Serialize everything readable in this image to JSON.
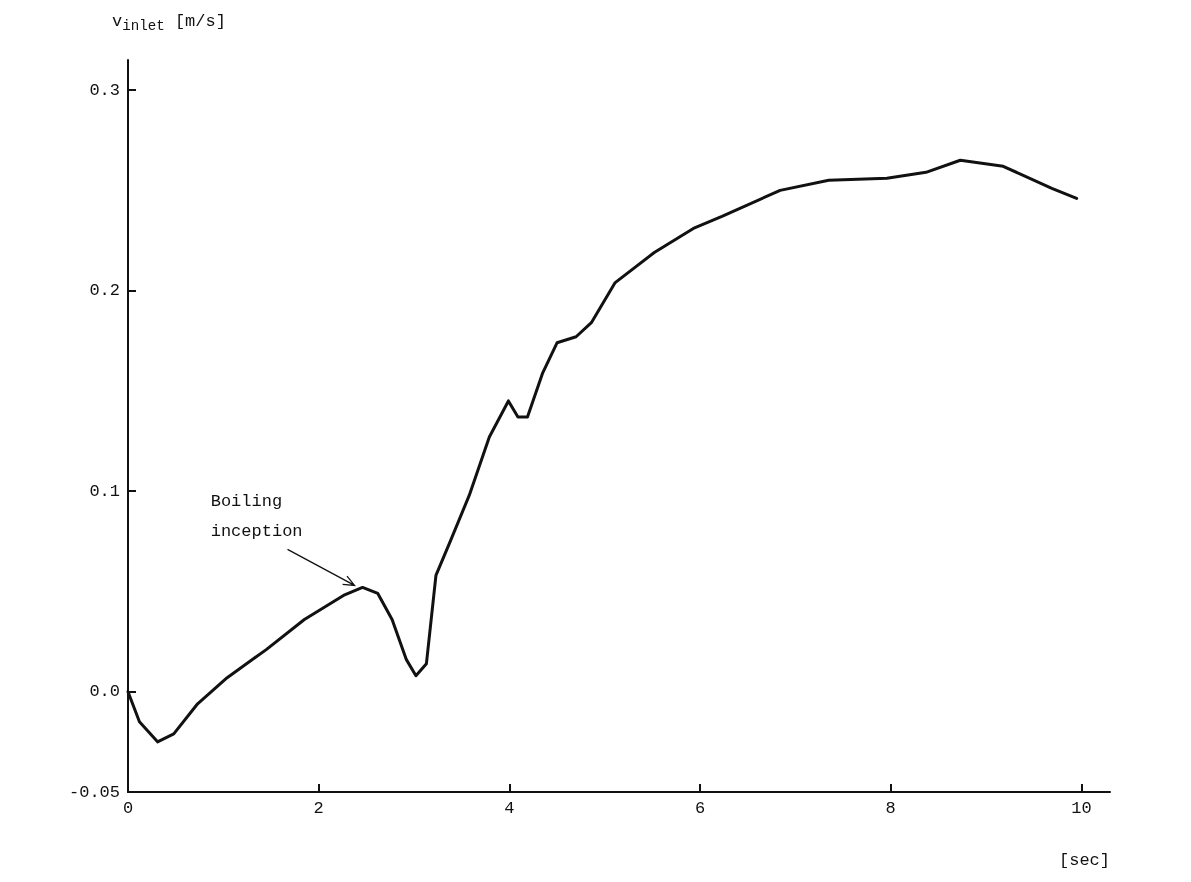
{
  "chart_data": {
    "type": "line",
    "xlabel": "[sec]",
    "ylabel": "v$_{inlet}$ [m/s]",
    "xlim": [
      0,
      10.3
    ],
    "xticks": [
      0,
      2,
      4,
      6,
      8,
      10
    ],
    "ylim": [
      -0.05,
      0.315
    ],
    "yticks": [
      -0.05,
      {
        "value": 0,
        "label": "0.0"
      },
      0.1,
      0.2,
      0.3
    ],
    "marker": "none",
    "line_style": "solid",
    "annotations": [
      {
        "text": "Boiling\ninception",
        "x": 2.46,
        "y": 0.052
      }
    ],
    "series": [
      {
        "color": "#111111",
        "x": [
          0,
          0.12,
          0.31,
          0.48,
          0.73,
          1.04,
          1.45,
          1.85,
          2.26,
          2.46,
          2.62,
          2.77,
          2.92,
          3.02,
          3.13,
          3.23,
          3.38,
          3.58,
          3.79,
          3.99,
          4.09,
          4.19,
          4.35,
          4.5,
          4.7,
          4.86,
          5.11,
          5.52,
          5.93,
          6.23,
          6.84,
          7.35,
          7.96,
          8.37,
          8.73,
          9.18,
          9.69,
          9.95
        ],
        "values": [
          0,
          -0.015,
          -0.025,
          -0.021,
          -0.006,
          0.007,
          0.021,
          0.036,
          0.048,
          0.052,
          0.049,
          0.036,
          0.016,
          0.008,
          0.014,
          0.058,
          0.075,
          0.098,
          0.127,
          0.145,
          0.137,
          0.137,
          0.159,
          0.174,
          0.177,
          0.184,
          0.204,
          0.219,
          0.231,
          0.237,
          0.25,
          0.255,
          0.256,
          0.259,
          0.265,
          0.262,
          0.251,
          0.246
        ]
      }
    ]
  }
}
